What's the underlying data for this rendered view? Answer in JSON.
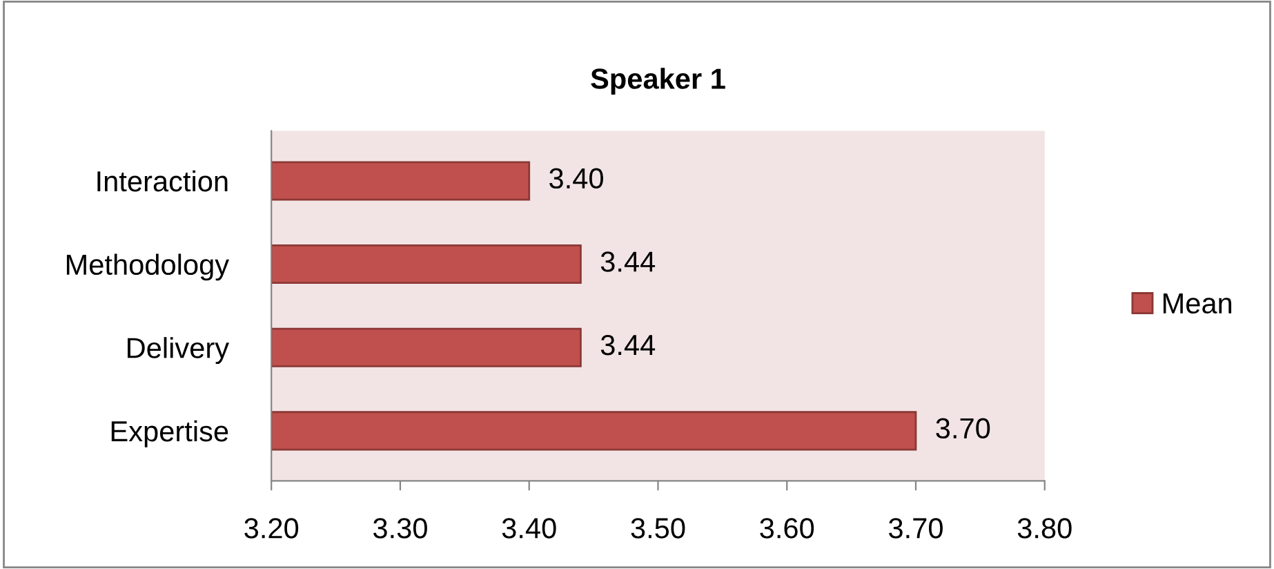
{
  "chart_data": {
    "type": "bar",
    "orientation": "horizontal",
    "title": "Speaker 1",
    "categories": [
      "Interaction",
      "Methodology",
      "Delivery",
      "Expertise"
    ],
    "series": [
      {
        "name": "Mean",
        "color": "#c0504d",
        "values": [
          3.4,
          3.44,
          3.44,
          3.7
        ],
        "value_labels": [
          "3.40",
          "3.44",
          "3.44",
          "3.70"
        ]
      }
    ],
    "xlim": [
      3.2,
      3.8
    ],
    "xticks": [
      {
        "value": 3.2,
        "label": "3.20"
      },
      {
        "value": 3.3,
        "label": "3.30"
      },
      {
        "value": 3.4,
        "label": "3.40"
      },
      {
        "value": 3.5,
        "label": "3.50"
      },
      {
        "value": 3.6,
        "label": "3.60"
      },
      {
        "value": 3.7,
        "label": "3.70"
      },
      {
        "value": 3.8,
        "label": "3.80"
      }
    ],
    "grid": false,
    "legend": "right"
  }
}
